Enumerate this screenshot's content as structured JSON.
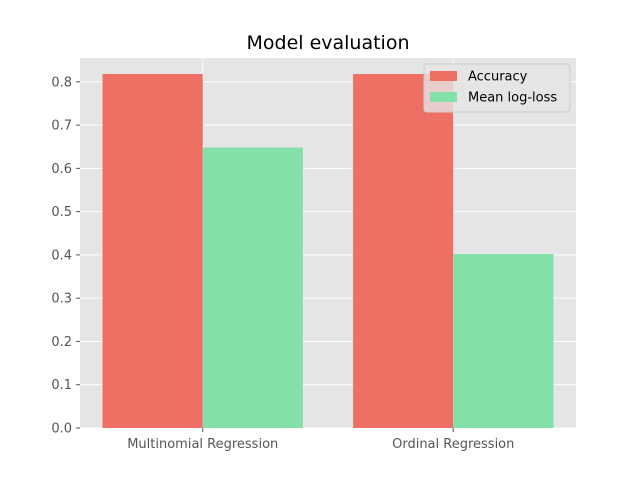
{
  "chart_data": {
    "type": "bar",
    "title": "Model evaluation",
    "xlabel": "",
    "ylabel": "",
    "categories": [
      "Multinomial Regression",
      "Ordinal Regression"
    ],
    "series": [
      {
        "name": "Accuracy",
        "values": [
          0.818,
          0.818
        ],
        "color": "#EE7064"
      },
      {
        "name": "Mean log-loss",
        "values": [
          0.648,
          0.402
        ],
        "color": "#83E0A9"
      }
    ],
    "ylim": [
      0,
      0.855
    ],
    "yticks": [
      0.0,
      0.1,
      0.2,
      0.3,
      0.4,
      0.5,
      0.6,
      0.7,
      0.8
    ],
    "ytick_labels": [
      "0.0",
      "0.1",
      "0.2",
      "0.3",
      "0.4",
      "0.5",
      "0.6",
      "0.7",
      "0.8"
    ],
    "grid": true,
    "legend_position": "top-right",
    "background": "#E5E5E5"
  }
}
